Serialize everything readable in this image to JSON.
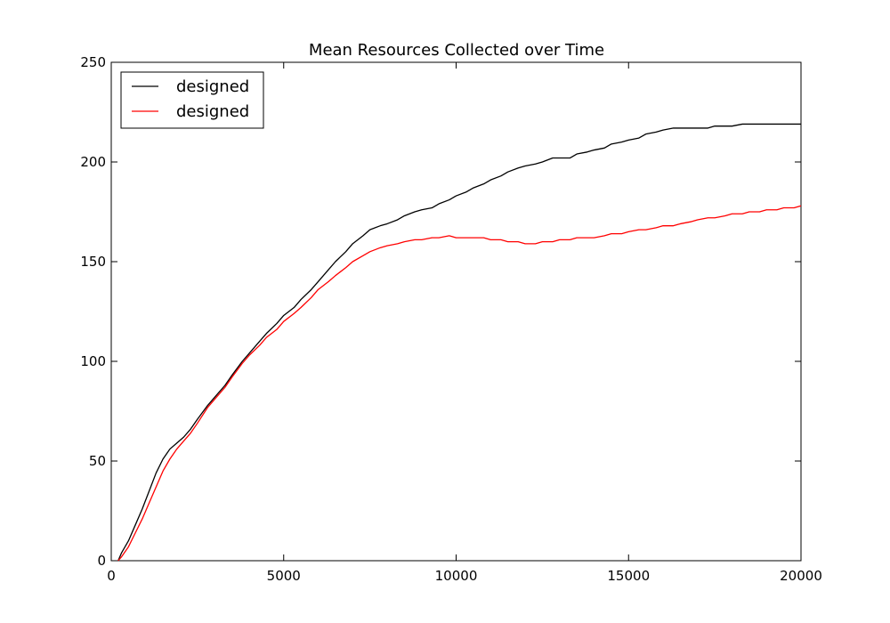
{
  "chart_data": {
    "type": "line",
    "title": "Mean Resources Collected over Time",
    "xlabel": "",
    "ylabel": "",
    "xlim": [
      0,
      20000
    ],
    "ylim": [
      0,
      250
    ],
    "x_ticks": [
      0,
      5000,
      10000,
      15000,
      20000
    ],
    "x_tick_labels": [
      "0",
      "5000",
      "10000",
      "15000",
      "20000"
    ],
    "y_ticks": [
      0,
      50,
      100,
      150,
      200,
      250
    ],
    "y_tick_labels": [
      "0",
      "50",
      "100",
      "150",
      "200",
      "250"
    ],
    "grid": false,
    "legend": {
      "position": "top-left"
    },
    "series": [
      {
        "name": "designed",
        "color": "#000000",
        "points": [
          [
            200,
            0
          ],
          [
            300,
            4
          ],
          [
            500,
            10
          ],
          [
            700,
            18
          ],
          [
            900,
            26
          ],
          [
            1100,
            35
          ],
          [
            1300,
            44
          ],
          [
            1500,
            51
          ],
          [
            1700,
            56
          ],
          [
            1900,
            59
          ],
          [
            2100,
            62
          ],
          [
            2300,
            66
          ],
          [
            2500,
            71
          ],
          [
            2800,
            78
          ],
          [
            3000,
            82
          ],
          [
            3300,
            88
          ],
          [
            3500,
            93
          ],
          [
            3800,
            100
          ],
          [
            4000,
            104
          ],
          [
            4300,
            110
          ],
          [
            4500,
            114
          ],
          [
            4800,
            119
          ],
          [
            5000,
            123
          ],
          [
            5300,
            127
          ],
          [
            5500,
            131
          ],
          [
            5800,
            136
          ],
          [
            6000,
            140
          ],
          [
            6300,
            146
          ],
          [
            6500,
            150
          ],
          [
            6800,
            155
          ],
          [
            7000,
            159
          ],
          [
            7300,
            163
          ],
          [
            7500,
            166
          ],
          [
            7800,
            168
          ],
          [
            8000,
            169
          ],
          [
            8300,
            171
          ],
          [
            8500,
            173
          ],
          [
            8800,
            175
          ],
          [
            9000,
            176
          ],
          [
            9300,
            177
          ],
          [
            9500,
            179
          ],
          [
            9800,
            181
          ],
          [
            10000,
            183
          ],
          [
            10300,
            185
          ],
          [
            10500,
            187
          ],
          [
            10800,
            189
          ],
          [
            11000,
            191
          ],
          [
            11300,
            193
          ],
          [
            11500,
            195
          ],
          [
            11800,
            197
          ],
          [
            12000,
            198
          ],
          [
            12300,
            199
          ],
          [
            12500,
            200
          ],
          [
            12800,
            202
          ],
          [
            13000,
            202
          ],
          [
            13300,
            202
          ],
          [
            13500,
            204
          ],
          [
            13800,
            205
          ],
          [
            14000,
            206
          ],
          [
            14300,
            207
          ],
          [
            14500,
            209
          ],
          [
            14800,
            210
          ],
          [
            15000,
            211
          ],
          [
            15300,
            212
          ],
          [
            15500,
            214
          ],
          [
            15800,
            215
          ],
          [
            16000,
            216
          ],
          [
            16300,
            217
          ],
          [
            16500,
            217
          ],
          [
            16800,
            217
          ],
          [
            17000,
            217
          ],
          [
            17300,
            217
          ],
          [
            17500,
            218
          ],
          [
            17800,
            218
          ],
          [
            18000,
            218
          ],
          [
            18300,
            219
          ],
          [
            18500,
            219
          ],
          [
            18800,
            219
          ],
          [
            19000,
            219
          ],
          [
            19300,
            219
          ],
          [
            19500,
            219
          ],
          [
            19800,
            219
          ],
          [
            20000,
            219
          ]
        ]
      },
      {
        "name": "designed",
        "color": "#ff0000",
        "points": [
          [
            200,
            0
          ],
          [
            300,
            2
          ],
          [
            500,
            7
          ],
          [
            700,
            14
          ],
          [
            900,
            21
          ],
          [
            1100,
            29
          ],
          [
            1300,
            37
          ],
          [
            1500,
            45
          ],
          [
            1700,
            51
          ],
          [
            1900,
            56
          ],
          [
            2100,
            60
          ],
          [
            2300,
            64
          ],
          [
            2500,
            69
          ],
          [
            2800,
            77
          ],
          [
            3000,
            81
          ],
          [
            3300,
            87
          ],
          [
            3500,
            92
          ],
          [
            3800,
            99
          ],
          [
            4000,
            103
          ],
          [
            4300,
            108
          ],
          [
            4500,
            112
          ],
          [
            4800,
            116
          ],
          [
            5000,
            120
          ],
          [
            5300,
            124
          ],
          [
            5500,
            127
          ],
          [
            5800,
            132
          ],
          [
            6000,
            136
          ],
          [
            6300,
            140
          ],
          [
            6500,
            143
          ],
          [
            6800,
            147
          ],
          [
            7000,
            150
          ],
          [
            7300,
            153
          ],
          [
            7500,
            155
          ],
          [
            7800,
            157
          ],
          [
            8000,
            158
          ],
          [
            8300,
            159
          ],
          [
            8500,
            160
          ],
          [
            8800,
            161
          ],
          [
            9000,
            161
          ],
          [
            9300,
            162
          ],
          [
            9500,
            162
          ],
          [
            9800,
            163
          ],
          [
            10000,
            162
          ],
          [
            10300,
            162
          ],
          [
            10500,
            162
          ],
          [
            10800,
            162
          ],
          [
            11000,
            161
          ],
          [
            11300,
            161
          ],
          [
            11500,
            160
          ],
          [
            11800,
            160
          ],
          [
            12000,
            159
          ],
          [
            12300,
            159
          ],
          [
            12500,
            160
          ],
          [
            12800,
            160
          ],
          [
            13000,
            161
          ],
          [
            13300,
            161
          ],
          [
            13500,
            162
          ],
          [
            13800,
            162
          ],
          [
            14000,
            162
          ],
          [
            14300,
            163
          ],
          [
            14500,
            164
          ],
          [
            14800,
            164
          ],
          [
            15000,
            165
          ],
          [
            15300,
            166
          ],
          [
            15500,
            166
          ],
          [
            15800,
            167
          ],
          [
            16000,
            168
          ],
          [
            16300,
            168
          ],
          [
            16500,
            169
          ],
          [
            16800,
            170
          ],
          [
            17000,
            171
          ],
          [
            17300,
            172
          ],
          [
            17500,
            172
          ],
          [
            17800,
            173
          ],
          [
            18000,
            174
          ],
          [
            18300,
            174
          ],
          [
            18500,
            175
          ],
          [
            18800,
            175
          ],
          [
            19000,
            176
          ],
          [
            19300,
            176
          ],
          [
            19500,
            177
          ],
          [
            19800,
            177
          ],
          [
            20000,
            178
          ]
        ]
      }
    ]
  }
}
